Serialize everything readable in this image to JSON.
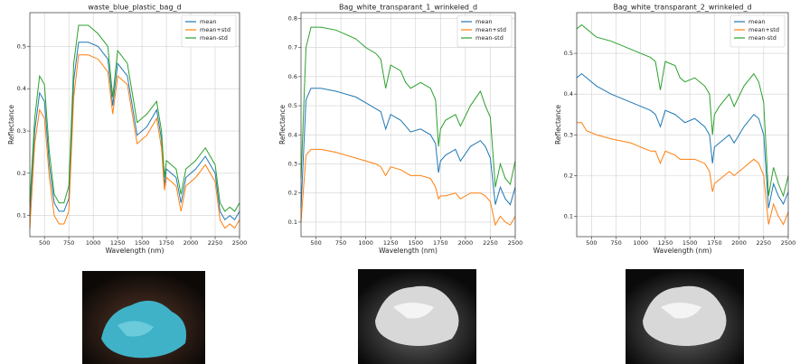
{
  "chart_data": [
    {
      "type": "line",
      "title": "waste_blue_plastic_bag_d",
      "xlabel": "Wavelength (nm)",
      "ylabel": "Reflectance",
      "x": [
        350,
        400,
        450,
        500,
        550,
        600,
        650,
        700,
        750,
        800,
        850,
        950,
        1050,
        1150,
        1200,
        1250,
        1350,
        1450,
        1550,
        1650,
        1700,
        1730,
        1750,
        1850,
        1900,
        1950,
        2050,
        2150,
        2250,
        2300,
        2350,
        2400,
        2450,
        2500
      ],
      "series": [
        {
          "name": "mean",
          "color": "#1f77b4",
          "values": [
            0.1,
            0.3,
            0.39,
            0.37,
            0.22,
            0.13,
            0.11,
            0.11,
            0.14,
            0.42,
            0.51,
            0.51,
            0.5,
            0.47,
            0.36,
            0.46,
            0.43,
            0.29,
            0.31,
            0.35,
            0.28,
            0.17,
            0.21,
            0.19,
            0.13,
            0.19,
            0.21,
            0.24,
            0.2,
            0.11,
            0.09,
            0.1,
            0.09,
            0.11
          ]
        },
        {
          "name": "mean+std",
          "color": "#ff7f0e",
          "values": [
            0.07,
            0.27,
            0.35,
            0.33,
            0.19,
            0.1,
            0.08,
            0.08,
            0.11,
            0.38,
            0.48,
            0.48,
            0.47,
            0.44,
            0.34,
            0.43,
            0.41,
            0.27,
            0.29,
            0.33,
            0.26,
            0.16,
            0.19,
            0.17,
            0.11,
            0.17,
            0.19,
            0.22,
            0.18,
            0.09,
            0.07,
            0.08,
            0.07,
            0.09
          ]
        },
        {
          "name": "mean-std",
          "color": "#2ca02c",
          "values": [
            0.13,
            0.33,
            0.43,
            0.41,
            0.25,
            0.15,
            0.13,
            0.13,
            0.17,
            0.46,
            0.55,
            0.55,
            0.53,
            0.5,
            0.38,
            0.49,
            0.46,
            0.32,
            0.34,
            0.37,
            0.3,
            0.19,
            0.23,
            0.21,
            0.15,
            0.21,
            0.23,
            0.26,
            0.22,
            0.13,
            0.11,
            0.12,
            0.11,
            0.13
          ]
        }
      ],
      "xlim": [
        350,
        2500
      ],
      "xticks": [
        500,
        750,
        1000,
        1250,
        1500,
        1750,
        2000,
        2250,
        2500
      ],
      "ylim": [
        0.05,
        0.58
      ],
      "yticks": [
        0.1,
        0.2,
        0.3,
        0.4,
        0.5
      ],
      "grid": true,
      "legend": "upper right"
    },
    {
      "type": "line",
      "title": "Bag_white_transparant_1_wrinkeled_d",
      "xlabel": "Wavelength (nm)",
      "ylabel": "Reflectance",
      "x": [
        350,
        400,
        450,
        550,
        700,
        900,
        1000,
        1100,
        1150,
        1200,
        1250,
        1350,
        1400,
        1450,
        1550,
        1650,
        1700,
        1730,
        1750,
        1800,
        1900,
        1950,
        2050,
        2150,
        2200,
        2250,
        2300,
        2350,
        2400,
        2450,
        2500
      ],
      "series": [
        {
          "name": "mean",
          "color": "#1f77b4",
          "values": [
            0.15,
            0.52,
            0.56,
            0.56,
            0.55,
            0.53,
            0.51,
            0.49,
            0.48,
            0.42,
            0.47,
            0.45,
            0.43,
            0.41,
            0.42,
            0.4,
            0.37,
            0.27,
            0.31,
            0.33,
            0.35,
            0.31,
            0.36,
            0.38,
            0.36,
            0.32,
            0.16,
            0.22,
            0.18,
            0.16,
            0.22
          ]
        },
        {
          "name": "mean+std",
          "color": "#ff7f0e",
          "values": [
            0.1,
            0.33,
            0.35,
            0.35,
            0.34,
            0.32,
            0.31,
            0.3,
            0.29,
            0.26,
            0.29,
            0.28,
            0.27,
            0.26,
            0.26,
            0.25,
            0.22,
            0.18,
            0.19,
            0.19,
            0.2,
            0.18,
            0.2,
            0.2,
            0.19,
            0.17,
            0.09,
            0.12,
            0.1,
            0.09,
            0.12
          ]
        },
        {
          "name": "mean-std",
          "color": "#2ca02c",
          "values": [
            0.25,
            0.7,
            0.77,
            0.77,
            0.76,
            0.73,
            0.7,
            0.68,
            0.66,
            0.56,
            0.64,
            0.62,
            0.58,
            0.56,
            0.58,
            0.56,
            0.52,
            0.36,
            0.42,
            0.45,
            0.47,
            0.43,
            0.5,
            0.55,
            0.5,
            0.46,
            0.22,
            0.3,
            0.25,
            0.23,
            0.31
          ]
        }
      ],
      "xlim": [
        350,
        2500
      ],
      "xticks": [
        500,
        750,
        1000,
        1250,
        1500,
        1750,
        2000,
        2250,
        2500
      ],
      "ylim": [
        0.05,
        0.82
      ],
      "yticks": [
        0.1,
        0.2,
        0.3,
        0.4,
        0.5,
        0.6,
        0.7,
        0.8
      ],
      "grid": true,
      "legend": "upper right"
    },
    {
      "type": "line",
      "title": "Bag_white_transparant_2_wrinkeled_d",
      "xlabel": "Wavelength (nm)",
      "ylabel": "Reflectance",
      "x": [
        350,
        400,
        450,
        550,
        700,
        900,
        1000,
        1100,
        1150,
        1200,
        1250,
        1350,
        1400,
        1450,
        1550,
        1650,
        1700,
        1730,
        1750,
        1800,
        1900,
        1950,
        2050,
        2150,
        2200,
        2250,
        2300,
        2350,
        2400,
        2450,
        2500
      ],
      "series": [
        {
          "name": "mean",
          "color": "#1f77b4",
          "values": [
            0.44,
            0.45,
            0.44,
            0.42,
            0.4,
            0.38,
            0.37,
            0.36,
            0.35,
            0.32,
            0.36,
            0.35,
            0.34,
            0.33,
            0.34,
            0.32,
            0.3,
            0.23,
            0.27,
            0.28,
            0.3,
            0.28,
            0.32,
            0.35,
            0.34,
            0.3,
            0.12,
            0.18,
            0.15,
            0.13,
            0.16
          ]
        },
        {
          "name": "mean+std",
          "color": "#ff7f0e",
          "values": [
            0.33,
            0.33,
            0.31,
            0.3,
            0.29,
            0.28,
            0.27,
            0.26,
            0.26,
            0.23,
            0.26,
            0.25,
            0.24,
            0.24,
            0.24,
            0.23,
            0.21,
            0.16,
            0.18,
            0.19,
            0.21,
            0.2,
            0.22,
            0.24,
            0.23,
            0.2,
            0.08,
            0.13,
            0.1,
            0.08,
            0.11
          ]
        },
        {
          "name": "mean-std",
          "color": "#2ca02c",
          "values": [
            0.56,
            0.57,
            0.56,
            0.54,
            0.53,
            0.51,
            0.5,
            0.49,
            0.48,
            0.41,
            0.48,
            0.47,
            0.44,
            0.43,
            0.44,
            0.42,
            0.4,
            0.3,
            0.35,
            0.37,
            0.4,
            0.37,
            0.42,
            0.45,
            0.43,
            0.38,
            0.15,
            0.22,
            0.18,
            0.15,
            0.2
          ]
        }
      ],
      "xlim": [
        350,
        2500
      ],
      "xticks": [
        500,
        750,
        1000,
        1250,
        1500,
        1750,
        2000,
        2250,
        2500
      ],
      "ylim": [
        0.05,
        0.6
      ],
      "yticks": [
        0.1,
        0.2,
        0.3,
        0.4,
        0.5
      ],
      "grid": true,
      "legend": "upper right"
    }
  ]
}
